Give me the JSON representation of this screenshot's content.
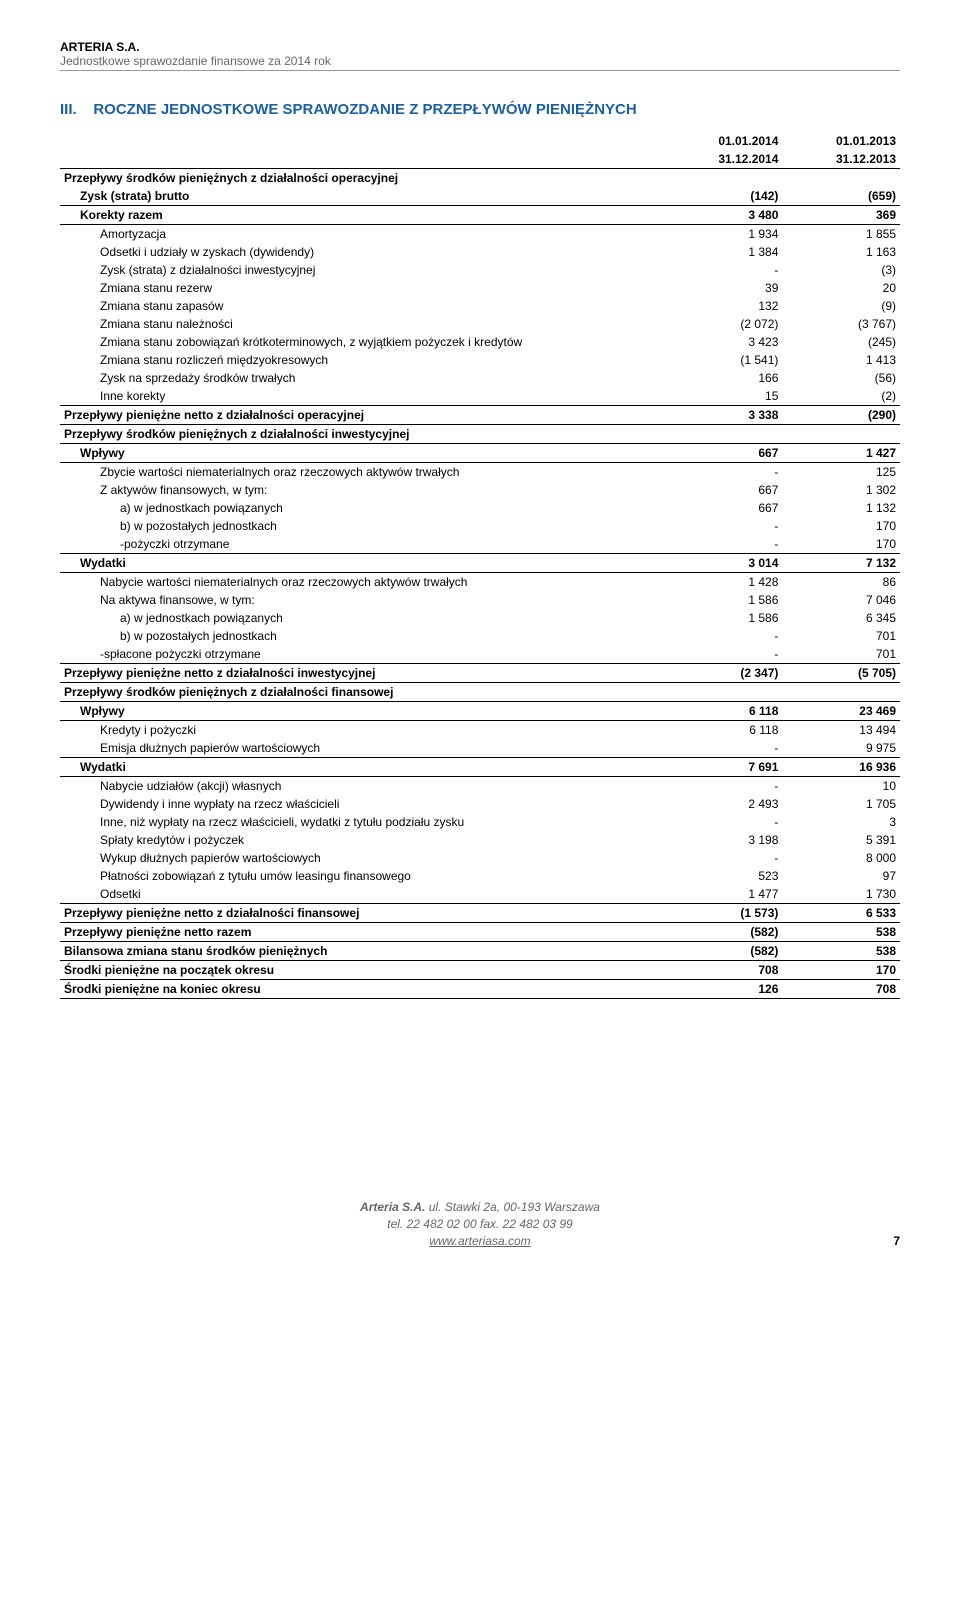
{
  "header": {
    "company": "ARTERIA S.A.",
    "subtitle": "Jednostkowe sprawozdanie finansowe za 2014 rok"
  },
  "section": {
    "number": "III.",
    "title": "ROCZNE JEDNOSTKOWE SPRAWOZDANIE Z PRZEPŁYWÓW PIENIĘŻNYCH"
  },
  "colhead": {
    "c1a": "01.01.2014",
    "c1b": "31.12.2014",
    "c2a": "01.01.2013",
    "c2b": "31.12.2013"
  },
  "rows": [
    {
      "label": "Przepływy środków pieniężnych z działalności operacyjnej",
      "v1": "",
      "v2": "",
      "bold": true
    },
    {
      "label": "Zysk (strata) brutto",
      "v1": "(142)",
      "v2": "(659)",
      "bold": true,
      "underline": true,
      "indent": 1
    },
    {
      "label": "Korekty razem",
      "v1": "3 480",
      "v2": "369",
      "bold": true,
      "underline": true,
      "indent": 1
    },
    {
      "label": "Amortyzacja",
      "v1": "1 934",
      "v2": "1 855",
      "indent": 2
    },
    {
      "label": "Odsetki i udziały w zyskach (dywidendy)",
      "v1": "1 384",
      "v2": "1 163",
      "indent": 2
    },
    {
      "label": "Zysk (strata) z działalności inwestycyjnej",
      "v1": "-",
      "v2": "(3)",
      "indent": 2
    },
    {
      "label": "Zmiana stanu rezerw",
      "v1": "39",
      "v2": "20",
      "indent": 2
    },
    {
      "label": "Zmiana stanu zapasów",
      "v1": "132",
      "v2": "(9)",
      "indent": 2
    },
    {
      "label": "Zmiana stanu należności",
      "v1": "(2 072)",
      "v2": "(3 767)",
      "indent": 2
    },
    {
      "label": "Zmiana stanu zobowiązań krótkoterminowych, z wyjątkiem pożyczek i kredytów",
      "v1": "3 423",
      "v2": "(245)",
      "indent": 2
    },
    {
      "label": "Zmiana stanu rozliczeń międzyokresowych",
      "v1": "(1 541)",
      "v2": "1 413",
      "indent": 2
    },
    {
      "label": "Zysk na sprzedaży środków trwałych",
      "v1": "166",
      "v2": "(56)",
      "indent": 2
    },
    {
      "label": "Inne korekty",
      "v1": "15",
      "v2": "(2)",
      "indent": 2,
      "underline": true
    },
    {
      "label": "Przepływy pieniężne netto z działalności operacyjnej",
      "v1": "3 338",
      "v2": "(290)",
      "bold": true,
      "underline": true
    },
    {
      "label": "Przepływy środków pieniężnych z działalności inwestycyjnej",
      "v1": "",
      "v2": "",
      "bold": true,
      "underline": true
    },
    {
      "label": "Wpływy",
      "v1": "667",
      "v2": "1 427",
      "bold": true,
      "underline": true,
      "indent": 1
    },
    {
      "label": "Zbycie wartości niematerialnych oraz rzeczowych aktywów trwałych",
      "v1": "-",
      "v2": "125",
      "indent": 2
    },
    {
      "label": "Z aktywów finansowych, w tym:",
      "v1": "667",
      "v2": "1 302",
      "indent": 2
    },
    {
      "label": "a) w jednostkach powiązanych",
      "v1": "667",
      "v2": "1 132",
      "indent": 3
    },
    {
      "label": "b) w pozostałych jednostkach",
      "v1": "-",
      "v2": "170",
      "indent": 3
    },
    {
      "label": "-pożyczki otrzymane",
      "v1": "-",
      "v2": "170",
      "indent": 3,
      "underline": true
    },
    {
      "label": "Wydatki",
      "v1": "3 014",
      "v2": "7 132",
      "bold": true,
      "underline": true,
      "indent": 1
    },
    {
      "label": "Nabycie wartości niematerialnych oraz rzeczowych aktywów trwałych",
      "v1": "1 428",
      "v2": "86",
      "indent": 2
    },
    {
      "label": "Na aktywa finansowe, w tym:",
      "v1": "1 586",
      "v2": "7 046",
      "indent": 2
    },
    {
      "label": "a) w jednostkach powiązanych",
      "v1": "1 586",
      "v2": "6 345",
      "indent": 3
    },
    {
      "label": "b) w pozostałych jednostkach",
      "v1": "-",
      "v2": "701",
      "indent": 3
    },
    {
      "label": "-spłacone pożyczki otrzymane",
      "v1": "-",
      "v2": "701",
      "indent": 2,
      "underline": true
    },
    {
      "label": "Przepływy pieniężne netto z działalności inwestycyjnej",
      "v1": "(2 347)",
      "v2": "(5 705)",
      "bold": true,
      "underline": true
    },
    {
      "label": "Przepływy środków pieniężnych z działalności finansowej",
      "v1": "",
      "v2": "",
      "bold": true,
      "underline": true
    },
    {
      "label": "Wpływy",
      "v1": "6 118",
      "v2": "23 469",
      "bold": true,
      "underline": true,
      "indent": 1
    },
    {
      "label": "Kredyty i pożyczki",
      "v1": "6 118",
      "v2": "13 494",
      "indent": 2
    },
    {
      "label": "Emisja dłużnych papierów wartościowych",
      "v1": "-",
      "v2": "9 975",
      "indent": 2,
      "underline": true
    },
    {
      "label": "Wydatki",
      "v1": "7 691",
      "v2": "16 936",
      "bold": true,
      "underline": true,
      "indent": 1
    },
    {
      "label": "Nabycie udziałów (akcji) własnych",
      "v1": "-",
      "v2": "10",
      "indent": 2
    },
    {
      "label": "Dywidendy i inne wypłaty na rzecz właścicieli",
      "v1": "2 493",
      "v2": "1 705",
      "indent": 2
    },
    {
      "label": "Inne, niż wypłaty na rzecz właścicieli, wydatki z tytułu podziału zysku",
      "v1": "-",
      "v2": "3",
      "indent": 2
    },
    {
      "label": "Spłaty kredytów i pożyczek",
      "v1": "3 198",
      "v2": "5 391",
      "indent": 2
    },
    {
      "label": "Wykup dłużnych papierów wartościowych",
      "v1": "-",
      "v2": "8 000",
      "indent": 2
    },
    {
      "label": "Płatności zobowiązań z tytułu umów leasingu finansowego",
      "v1": "523",
      "v2": "97",
      "indent": 2
    },
    {
      "label": "Odsetki",
      "v1": "1 477",
      "v2": "1 730",
      "indent": 2,
      "underline": true
    },
    {
      "label": "Przepływy pieniężne netto z działalności finansowej",
      "v1": "(1 573)",
      "v2": "6 533",
      "bold": true,
      "underline": true
    },
    {
      "label": "Przepływy pieniężne netto razem",
      "v1": "(582)",
      "v2": "538",
      "bold": true,
      "underline": true
    },
    {
      "label": "Bilansowa zmiana stanu środków pieniężnych",
      "v1": "(582)",
      "v2": "538",
      "bold": true,
      "underline": true
    },
    {
      "label": "Środki pieniężne na początek okresu",
      "v1": "708",
      "v2": "170",
      "bold": true,
      "underline": true
    },
    {
      "label": "Środki pieniężne na koniec okresu",
      "v1": "126",
      "v2": "708",
      "bold": true,
      "underline": true
    }
  ],
  "footer": {
    "l1": "Arteria S.A.",
    "l1b": " ul. Stawki 2a, 00-193 Warszawa",
    "l2": "tel. 22 482 02 00 fax. 22 482 03 99",
    "l3": "www.arteriasa.com",
    "page": "7"
  }
}
